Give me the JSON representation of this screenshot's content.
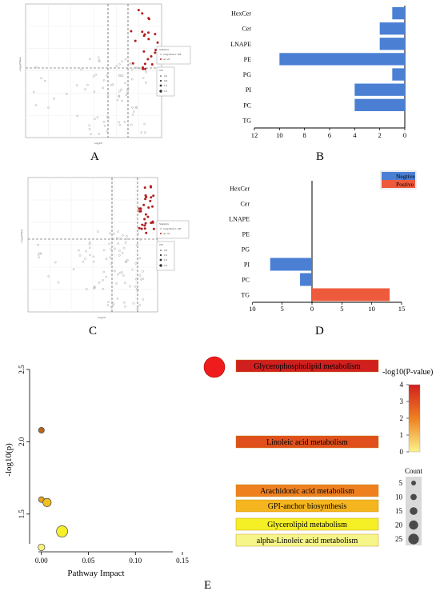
{
  "panels": {
    "A": {
      "label": "A"
    },
    "B": {
      "label": "B"
    },
    "C": {
      "label": "C"
    },
    "D": {
      "label": "D"
    },
    "E": {
      "label": "E"
    }
  },
  "chart_data": [
    {
      "id": "A",
      "type": "scatter",
      "xlabel": "Log₂FC",
      "ylabel": "−Log₁₀PValue",
      "legend": {
        "title": "Statistics",
        "items": [
          "insignificant: 128",
          "up: 24"
        ],
        "vip_title": "VIP",
        "vip_items": [
          "0.4",
          "0.8",
          "1.2",
          "1.6"
        ]
      },
      "legend_placement": "right",
      "points_note": "volcano plot: grey = insignificant, red = up-regulated"
    },
    {
      "id": "B",
      "type": "bar",
      "orientation": "horizontal",
      "categories": [
        "HexCer",
        "Cer",
        "LNAPE",
        "PE",
        "PG",
        "PI",
        "PC",
        "TG"
      ],
      "values": [
        1,
        2,
        2,
        10,
        1,
        4,
        4,
        0
      ],
      "xlim": [
        12,
        0
      ],
      "xticks": [
        "12",
        "10",
        "8",
        "6",
        "4",
        "2",
        "0"
      ],
      "color": "#4a7fd4"
    },
    {
      "id": "C",
      "type": "scatter",
      "xlabel": "Log₂FC",
      "ylabel": "−Log₁₀PValue",
      "legend": {
        "title": "Statistics",
        "items": [
          "insignificant: 145",
          "up: 31"
        ],
        "vip_title": "VIP",
        "vip_items": [
          "0.5",
          "1.0",
          "1.5",
          "2.0"
        ]
      },
      "legend_placement": "right"
    },
    {
      "id": "D",
      "type": "bar",
      "orientation": "horizontal",
      "categories": [
        "HexCer",
        "Cer",
        "LNAPE",
        "PE",
        "PG",
        "PI",
        "PC",
        "TG"
      ],
      "series": [
        {
          "name": "Negtive",
          "values": [
            0,
            0,
            0,
            0,
            0,
            7,
            2,
            0
          ],
          "color": "#4a7fd4"
        },
        {
          "name": "Postive",
          "values": [
            0,
            0,
            0,
            0,
            0,
            0,
            0,
            13
          ],
          "color": "#ee5a3c"
        }
      ],
      "xticks": [
        "10",
        "5",
        "0",
        "5",
        "10",
        "15"
      ],
      "legend_placement": "top-right"
    },
    {
      "id": "E1",
      "type": "scatter",
      "xlabel": "Pathway Impact",
      "ylabel": "-log10(p)",
      "xlim": [
        -0.01,
        0.15
      ],
      "ylim": [
        1.25,
        2.5
      ],
      "xticks": [
        "0.00",
        "0.05",
        "0.10",
        "0.15"
      ],
      "yticks": [
        "1.5",
        "2.0",
        "2.5"
      ],
      "points": [
        {
          "x": 0.0,
          "y": 2.08,
          "color": "#b8651a"
        },
        {
          "x": 0.0,
          "y": 1.6,
          "color": "#e8a21c"
        },
        {
          "x": 0.006,
          "y": 1.58,
          "color": "#f0c020"
        },
        {
          "x": 0.022,
          "y": 1.38,
          "color": "#f6f02a"
        },
        {
          "x": 0.0,
          "y": 1.27,
          "color": "#f8f080"
        }
      ]
    },
    {
      "id": "E2",
      "type": "bar",
      "legend_title": "-log10(P-value)",
      "colorbar_ticks": [
        "4",
        "3",
        "2",
        "1",
        "0"
      ],
      "size_title": "Count",
      "size_ticks": [
        "5",
        "10",
        "15",
        "20",
        "25"
      ],
      "categories": [
        "Glycerophospholipid metabolism",
        "Linoleic acid metabolism",
        "Arachidonic acid metabolism",
        "GPI-anchor biosynthesis",
        "Glycerolipid metabolism",
        "alpha-Linoleic acid metabolism"
      ],
      "values": [
        3.9,
        2.6,
        1.7,
        1.4,
        0.6,
        0.3
      ],
      "colors": [
        "#d11f1f",
        "#e0501c",
        "#ef8020",
        "#f5b51f",
        "#f5ef26",
        "#f6f58a"
      ]
    }
  ]
}
